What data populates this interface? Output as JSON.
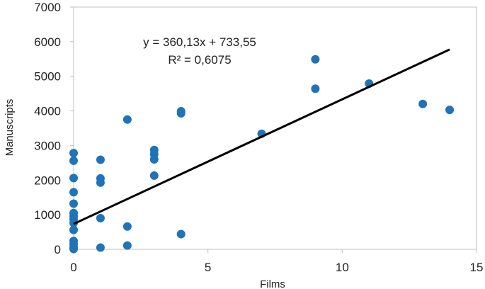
{
  "chart_data": {
    "type": "scatter",
    "title": "",
    "xlabel": "Films",
    "ylabel": "Manuscripts",
    "xlim": [
      0,
      15
    ],
    "ylim": [
      0,
      7000
    ],
    "x_ticks": [
      "0",
      "5",
      "10",
      "15"
    ],
    "y_ticks": [
      "0",
      "1000",
      "2000",
      "3000",
      "4000",
      "5000",
      "6000",
      "7000"
    ],
    "grid": false,
    "legend": "none",
    "colors": {
      "points": "#1f73b8",
      "trendline": "#000000",
      "axes": "#bfbfbf"
    },
    "series": [
      {
        "points": [
          [
            0,
            2780
          ],
          [
            0,
            2560
          ],
          [
            0,
            2060
          ],
          [
            0,
            1650
          ],
          [
            0,
            1320
          ],
          [
            0,
            1050
          ],
          [
            0,
            960
          ],
          [
            0,
            870
          ],
          [
            0,
            760
          ],
          [
            0,
            560
          ],
          [
            0,
            240
          ],
          [
            0,
            150
          ],
          [
            0,
            60
          ],
          [
            0,
            10
          ],
          [
            1,
            2590
          ],
          [
            1,
            2050
          ],
          [
            1,
            1930
          ],
          [
            1,
            900
          ],
          [
            1,
            50
          ],
          [
            2,
            3750
          ],
          [
            2,
            660
          ],
          [
            2,
            110
          ],
          [
            3,
            2870
          ],
          [
            3,
            2750
          ],
          [
            3,
            2600
          ],
          [
            3,
            2130
          ],
          [
            4,
            3990
          ],
          [
            4,
            3930
          ],
          [
            4,
            440
          ],
          [
            7,
            3340
          ],
          [
            9,
            5490
          ],
          [
            9,
            4640
          ],
          [
            11,
            4790
          ],
          [
            13,
            4200
          ],
          [
            14,
            4030
          ]
        ]
      }
    ],
    "trendline": {
      "slope": 360.13,
      "intercept": 733.55,
      "x_range": [
        0,
        14
      ],
      "equation_text": "y = 360,13x + 733,55",
      "r2_text": "R² = 0,6075"
    }
  }
}
